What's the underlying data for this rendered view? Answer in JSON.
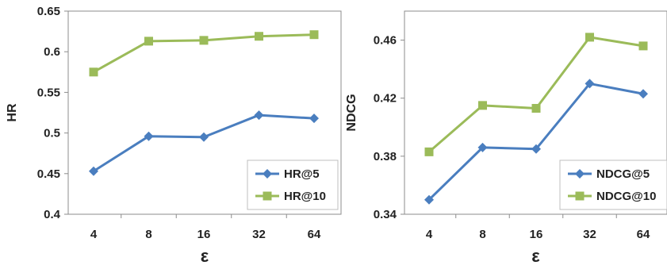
{
  "chart_data": [
    {
      "type": "line",
      "title": "",
      "xlabel": "ε",
      "ylabel": "HR",
      "categories": [
        "4",
        "8",
        "16",
        "32",
        "64"
      ],
      "ylim": [
        0.4,
        0.65
      ],
      "yticks": [
        "0.4",
        "0.45",
        "0.5",
        "0.55",
        "0.6",
        "0.65"
      ],
      "ytick_values": [
        0.4,
        0.45,
        0.5,
        0.55,
        0.6,
        0.65
      ],
      "grid": false,
      "legend": "bottom-right",
      "series": [
        {
          "name": "HR@5",
          "values": [
            0.453,
            0.496,
            0.495,
            0.522,
            0.518
          ],
          "color": "#4a7ebf",
          "marker": "diamond"
        },
        {
          "name": "HR@10",
          "values": [
            0.575,
            0.613,
            0.614,
            0.619,
            0.621
          ],
          "color": "#9bbb59",
          "marker": "square"
        }
      ]
    },
    {
      "type": "line",
      "title": "",
      "xlabel": "ε",
      "ylabel": "NDCG",
      "categories": [
        "4",
        "8",
        "16",
        "32",
        "64"
      ],
      "ylim": [
        0.34,
        0.48
      ],
      "yticks": [
        "0.34",
        "0.38",
        "0.42",
        "0.46"
      ],
      "ytick_values": [
        0.34,
        0.38,
        0.42,
        0.46
      ],
      "grid": false,
      "legend": "bottom-right",
      "series": [
        {
          "name": "NDCG@5",
          "values": [
            0.35,
            0.386,
            0.385,
            0.43,
            0.423
          ],
          "color": "#4a7ebf",
          "marker": "diamond"
        },
        {
          "name": "NDCG@10",
          "values": [
            0.383,
            0.415,
            0.413,
            0.462,
            0.456
          ],
          "color": "#9bbb59",
          "marker": "square"
        }
      ]
    }
  ]
}
